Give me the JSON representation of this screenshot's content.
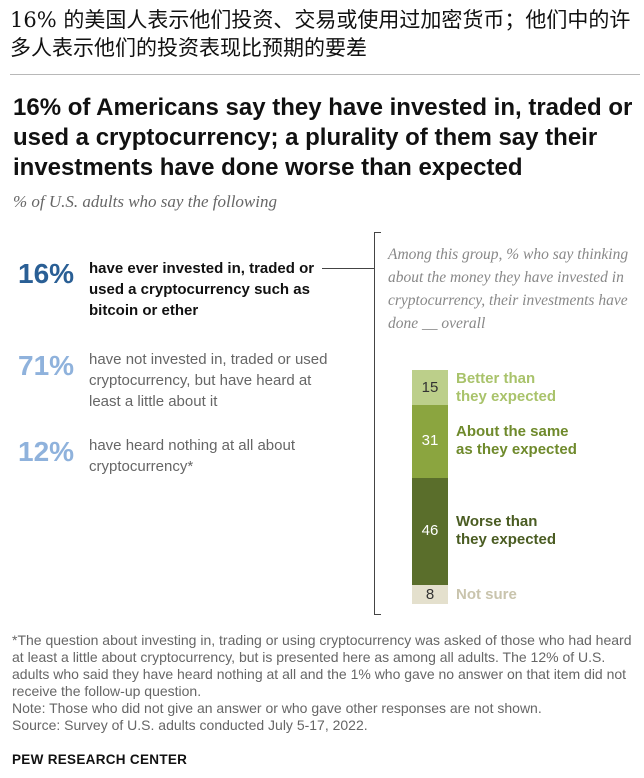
{
  "header": {
    "zh_title": "16% 的美国人表示他们投资、交易或使用过加密货币；他们中的许多人表示他们的投资表现比预期的要差",
    "en_title": "16% of Americans say they have invested in, traded or used a cryptocurrency; a plurality of them say their investments have done worse than expected",
    "subtitle": "% of U.S. adults who say the following"
  },
  "stats": [
    {
      "pct": "16%",
      "text": "have ever invested in, traded or used a cryptocurrency such as bitcoin or ether",
      "color": "#2a5f95"
    },
    {
      "pct": "71%",
      "text": "have not invested in, traded or used cryptocurrency, but have heard at least a little about it",
      "color": "#8fb2dc"
    },
    {
      "pct": "12%",
      "text": "have heard nothing at all about cryptocurrency*",
      "color": "#8fb2dc"
    }
  ],
  "group_note": "Among this group, % who say thinking about the money they have invested in cryptocurrency, their investments have done __ overall",
  "chart_data": {
    "type": "bar",
    "stacked": true,
    "orientation": "vertical",
    "categories": [
      "Better than they expected",
      "About the same as they expected",
      "Worse than they expected",
      "Not sure"
    ],
    "values": [
      15,
      31,
      46,
      8
    ],
    "colors": [
      "#bccf8a",
      "#8ba53f",
      "#5a6e2b",
      "#e4e0cd"
    ],
    "label_colors": [
      "#a9c36b",
      "#6f8a2c",
      "#4a5c22",
      "#c9c4ad"
    ],
    "value_text_colors": [
      "#333333",
      "#ffffff",
      "#ffffff",
      "#333333"
    ],
    "labels_display": [
      "Better than\nthey expected",
      "About the same\nas they expected",
      "Worse than\nthey expected",
      "Not sure"
    ]
  },
  "footnotes": [
    "*The question about investing in, trading or using cryptocurrency was asked of those who had heard at least a little about cryptocurrency, but is presented here as among all adults. The 12% of U.S. adults who said they have heard nothing at all and the 1% who gave no answer on that item did not receive the follow-up question.",
    "Note: Those who did not give an answer or who gave other responses are not shown.",
    "Source: Survey of U.S. adults conducted July 5-17, 2022."
  ],
  "credit": "PEW RESEARCH CENTER"
}
